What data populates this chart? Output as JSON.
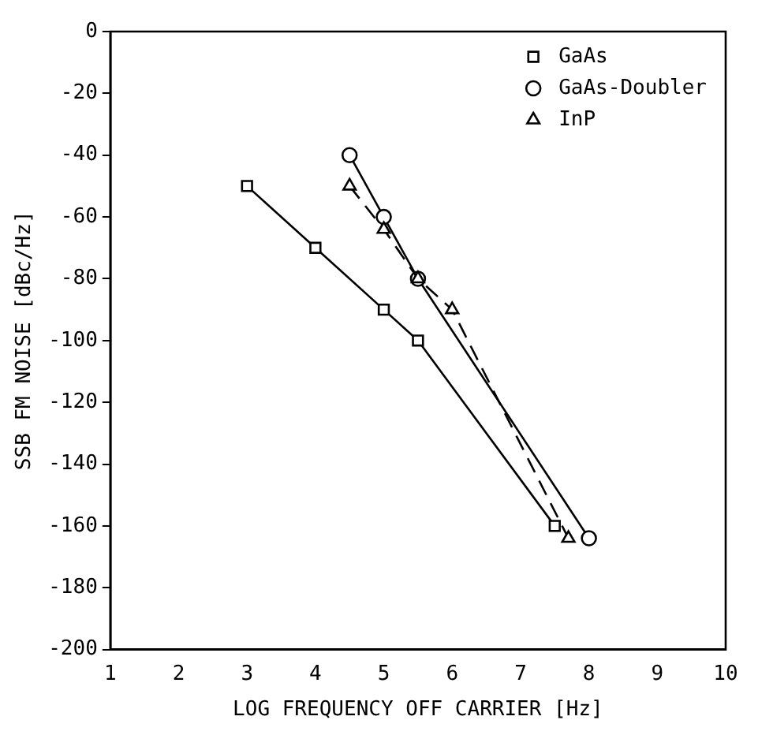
{
  "chart_data": {
    "type": "line",
    "xlabel": "LOG FREQUENCY OFF CARRIER [Hz]",
    "ylabel": "SSB FM NOISE [dBc/Hz]",
    "xlim": [
      1,
      10
    ],
    "xticks": [
      1,
      2,
      3,
      4,
      5,
      6,
      7,
      8,
      9,
      10
    ],
    "ylim": [
      -200,
      0
    ],
    "yticks": [
      -200,
      -180,
      -160,
      -140,
      -120,
      -100,
      -80,
      -60,
      -40,
      -20,
      0
    ],
    "grid": false,
    "legend": "top right",
    "series": [
      {
        "name": "GaAs",
        "color": "#000000",
        "marker": "square",
        "line_style": "solid",
        "x": [
          3,
          4,
          5,
          5.5,
          7.5
        ],
        "values": [
          -50,
          -70,
          -90,
          -100,
          -160
        ]
      },
      {
        "name": "GaAs-Doubler",
        "color": "#000000",
        "marker": "circle",
        "line_style": "solid",
        "x": [
          4.5,
          5,
          5.5,
          8
        ],
        "values": [
          -40,
          -60,
          -80,
          -164
        ]
      },
      {
        "name": "InP",
        "color": "#000000",
        "marker": "triangle",
        "line_style": "dashed",
        "x": [
          4.5,
          5,
          5.5,
          6,
          7.7
        ],
        "values": [
          -50,
          -64,
          -80,
          -90,
          -164
        ]
      }
    ]
  }
}
